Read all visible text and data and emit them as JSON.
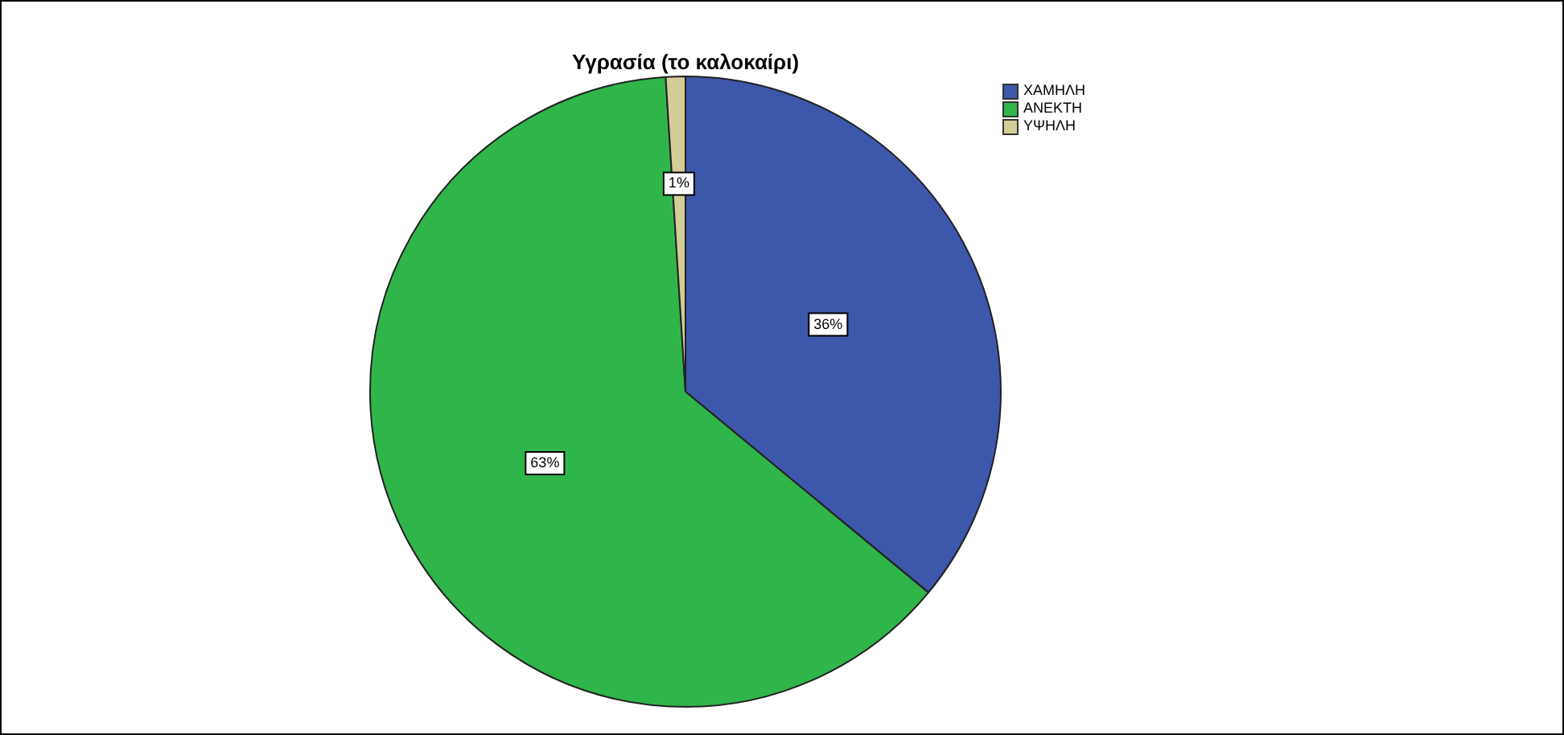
{
  "chart_data": {
    "type": "pie",
    "title": "Υγρασία (το καλοκαίρι)",
    "categories": [
      "ΧΑΜΗΛΗ",
      "ΑΝΕΚΤΗ",
      "ΥΨΗΛΗ"
    ],
    "values": [
      36,
      63,
      1
    ],
    "colors": [
      "#3d57ab",
      "#30b54a",
      "#d3cd98"
    ],
    "value_labels": [
      "36%",
      "63%",
      "1%"
    ],
    "legend": "top right"
  }
}
